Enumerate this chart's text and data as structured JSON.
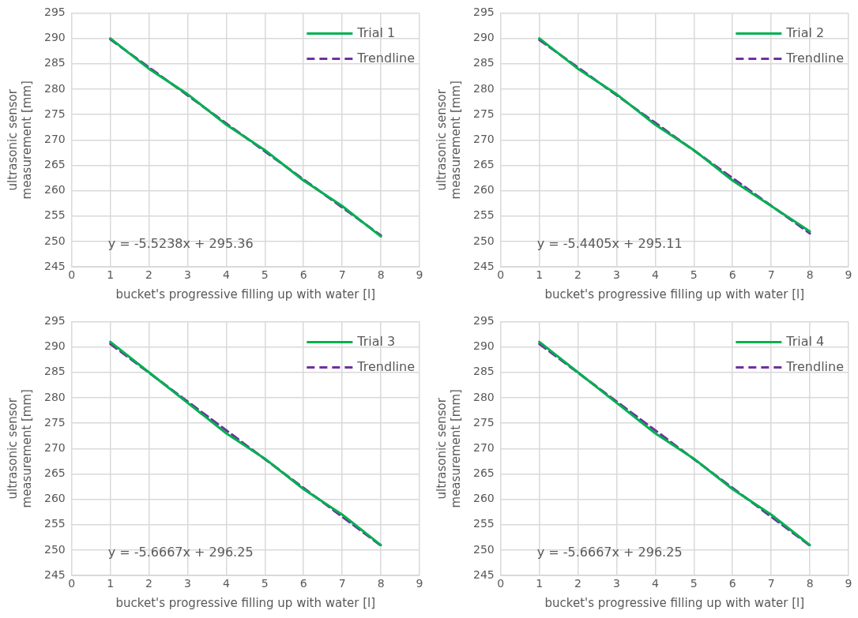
{
  "chart_data": [
    {
      "type": "line",
      "xlabel": "bucket's progressive filling up with water [l]",
      "ylabel": "ultrasonic sensor measurement [mm]",
      "xlim": [
        0,
        9
      ],
      "xticks": [
        0,
        1,
        2,
        3,
        4,
        5,
        6,
        7,
        8,
        9
      ],
      "ylim": [
        245,
        295
      ],
      "yticks": [
        245,
        250,
        255,
        260,
        265,
        270,
        275,
        280,
        285,
        290,
        295
      ],
      "grid": true,
      "legend": "top right",
      "marker": "none",
      "annotations": [
        "y = -5.5238x + 295.36"
      ],
      "series": [
        {
          "name": "Trial 1",
          "color": "#00b050",
          "line_style": "solid",
          "x": [
            1,
            2,
            3,
            4,
            5,
            6,
            7,
            8
          ],
          "values": [
            290,
            284,
            279,
            273,
            268,
            262,
            257,
            251
          ]
        },
        {
          "name": "Trendline",
          "color": "#7030a0",
          "line_style": "dashed",
          "x": [
            1,
            8
          ],
          "values": [
            289.8,
            251.2
          ]
        }
      ]
    },
    {
      "type": "line",
      "xlabel": "bucket's progressive filling up with water [l]",
      "ylabel": "ultrasonic sensor measurement [mm]",
      "xlim": [
        0,
        9
      ],
      "xticks": [
        0,
        1,
        2,
        3,
        4,
        5,
        6,
        7,
        8,
        9
      ],
      "ylim": [
        245,
        295
      ],
      "yticks": [
        245,
        250,
        255,
        260,
        265,
        270,
        275,
        280,
        285,
        290,
        295
      ],
      "grid": true,
      "legend": "top right",
      "marker": "none",
      "annotations": [
        "y = -5.4405x + 295.11"
      ],
      "series": [
        {
          "name": "Trial 2",
          "color": "#00b050",
          "line_style": "solid",
          "x": [
            1,
            2,
            3,
            4,
            5,
            6,
            7,
            8
          ],
          "values": [
            290,
            284,
            279,
            273,
            268,
            262,
            257,
            252
          ]
        },
        {
          "name": "Trendline",
          "color": "#7030a0",
          "line_style": "dashed",
          "x": [
            1,
            8
          ],
          "values": [
            289.7,
            251.6
          ]
        }
      ]
    },
    {
      "type": "line",
      "xlabel": "bucket's progressive filling up with water [l]",
      "ylabel": "ultrasonic sensor measurement [mm]",
      "xlim": [
        0,
        9
      ],
      "xticks": [
        0,
        1,
        2,
        3,
        4,
        5,
        6,
        7,
        8,
        9
      ],
      "ylim": [
        245,
        295
      ],
      "yticks": [
        245,
        250,
        255,
        260,
        265,
        270,
        275,
        280,
        285,
        290,
        295
      ],
      "grid": true,
      "legend": "top right",
      "marker": "none",
      "annotations": [
        "y = -5.6667x + 296.25"
      ],
      "series": [
        {
          "name": "Trial 3",
          "color": "#00b050",
          "line_style": "solid",
          "x": [
            1,
            2,
            3,
            4,
            5,
            6,
            7,
            8
          ],
          "values": [
            291,
            285,
            279,
            273,
            268,
            262,
            257,
            251
          ]
        },
        {
          "name": "Trendline",
          "color": "#7030a0",
          "line_style": "dashed",
          "x": [
            1,
            8
          ],
          "values": [
            290.6,
            250.9
          ]
        }
      ]
    },
    {
      "type": "line",
      "xlabel": "bucket's progressive filling up with water [l]",
      "ylabel": "ultrasonic sensor measurement [mm]",
      "xlim": [
        0,
        9
      ],
      "xticks": [
        0,
        1,
        2,
        3,
        4,
        5,
        6,
        7,
        8,
        9
      ],
      "ylim": [
        245,
        295
      ],
      "yticks": [
        245,
        250,
        255,
        260,
        265,
        270,
        275,
        280,
        285,
        290,
        295
      ],
      "grid": true,
      "legend": "top right",
      "marker": "none",
      "annotations": [
        "y = -5.6667x + 296.25"
      ],
      "series": [
        {
          "name": "Trial 4",
          "color": "#00b050",
          "line_style": "solid",
          "x": [
            1,
            2,
            3,
            4,
            5,
            6,
            7,
            8
          ],
          "values": [
            291,
            285,
            279,
            273,
            268,
            262,
            257,
            251
          ]
        },
        {
          "name": "Trendline",
          "color": "#7030a0",
          "line_style": "dashed",
          "x": [
            1,
            8
          ],
          "values": [
            290.6,
            250.9
          ]
        }
      ]
    }
  ]
}
